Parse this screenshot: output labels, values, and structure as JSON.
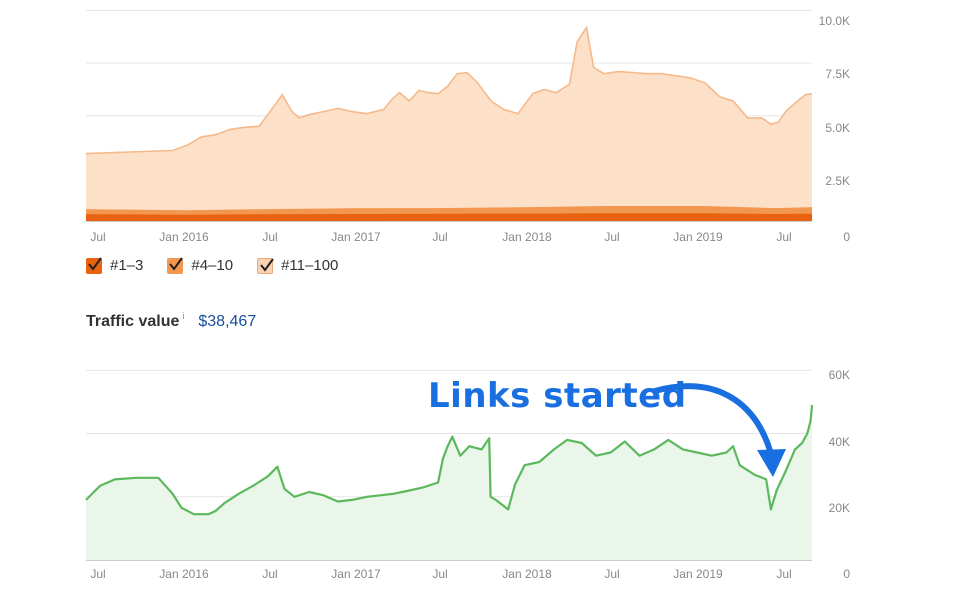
{
  "top_chart": {
    "x_ticks": [
      "Jul",
      "Jan 2016",
      "Jul",
      "Jan 2017",
      "Jul",
      "Jan 2018",
      "Jul",
      "Jan 2019",
      "Jul"
    ],
    "y_ticks": [
      "10.0K",
      "7.5K",
      "5.0K",
      "2.5K",
      "0"
    ],
    "legend": [
      {
        "label": "#1–3",
        "color": "#e8620f"
      },
      {
        "label": "#4–10",
        "color": "#f2974f"
      },
      {
        "label": "#11–100",
        "color": "#fbd3b2"
      }
    ]
  },
  "traffic_value": {
    "label": "Traffic value",
    "info": "i",
    "amount": "$38,467"
  },
  "bottom_chart": {
    "x_ticks": [
      "Jul",
      "Jan 2016",
      "Jul",
      "Jan 2017",
      "Jul",
      "Jan 2018",
      "Jul",
      "Jan 2019",
      "Jul"
    ],
    "y_ticks": [
      "60K",
      "40K",
      "20K",
      "0"
    ]
  },
  "annotation": {
    "text": "Links started",
    "color": "#1a6fe0"
  },
  "colors": {
    "orange_dark": "#e8620f",
    "orange_mid": "#f2974f",
    "orange_light": "#fbd3b2",
    "green_line": "#5cb85c",
    "green_fill": "#eaf6ea",
    "value_blue": "#1a4e9c"
  },
  "chart_data": [
    {
      "type": "area",
      "x_unit": "date",
      "x_ticks": [
        "Jul",
        "Jan 2016",
        "Jul",
        "Jan 2017",
        "Jul",
        "Jan 2018",
        "Jul",
        "Jan 2019",
        "Jul"
      ],
      "y_ticks": [
        "10.0K",
        "7.5K",
        "5.0K",
        "2.5K",
        "0"
      ],
      "ylim": [
        0,
        10500
      ],
      "xlim": [
        "2015-06-01",
        "2019-08-15"
      ],
      "series": [
        {
          "name": "#11–100",
          "color": "#fbd3b2",
          "points": [
            [
              "2015-06-01",
              3200
            ],
            [
              "2015-08-01",
              3250
            ],
            [
              "2015-10-01",
              3300
            ],
            [
              "2015-12-01",
              3350
            ],
            [
              "2016-01-01",
              3600
            ],
            [
              "2016-02-01",
              4000
            ],
            [
              "2016-03-01",
              4100
            ],
            [
              "2016-04-01",
              4350
            ],
            [
              "2016-05-01",
              4450
            ],
            [
              "2016-06-01",
              4500
            ],
            [
              "2016-07-01",
              5400
            ],
            [
              "2016-07-20",
              6000
            ],
            [
              "2016-08-10",
              5200
            ],
            [
              "2016-08-25",
              4900
            ],
            [
              "2016-09-15",
              5050
            ],
            [
              "2016-10-15",
              5200
            ],
            [
              "2016-11-15",
              5350
            ],
            [
              "2016-12-15",
              5200
            ],
            [
              "2017-01-15",
              5100
            ],
            [
              "2017-02-20",
              5300
            ],
            [
              "2017-03-10",
              5800
            ],
            [
              "2017-03-25",
              6100
            ],
            [
              "2017-04-15",
              5700
            ],
            [
              "2017-05-05",
              6200
            ],
            [
              "2017-05-25",
              6100
            ],
            [
              "2017-06-15",
              6050
            ],
            [
              "2017-07-05",
              6400
            ],
            [
              "2017-07-25",
              7000
            ],
            [
              "2017-08-15",
              7050
            ],
            [
              "2017-09-05",
              6600
            ],
            [
              "2017-10-05",
              5700
            ],
            [
              "2017-11-01",
              5300
            ],
            [
              "2017-12-01",
              5100
            ],
            [
              "2018-01-01",
              6050
            ],
            [
              "2018-01-25",
              6250
            ],
            [
              "2018-02-20",
              6100
            ],
            [
              "2018-03-20",
              6500
            ],
            [
              "2018-04-05",
              8500
            ],
            [
              "2018-04-25",
              9200
            ],
            [
              "2018-05-10",
              7300
            ],
            [
              "2018-06-01",
              7000
            ],
            [
              "2018-07-01",
              7100
            ],
            [
              "2018-08-01",
              7050
            ],
            [
              "2018-09-01",
              7000
            ],
            [
              "2018-10-01",
              7000
            ],
            [
              "2018-11-01",
              6900
            ],
            [
              "2018-12-01",
              6800
            ],
            [
              "2019-01-01",
              6550
            ],
            [
              "2019-02-01",
              5900
            ],
            [
              "2019-03-01",
              5700
            ],
            [
              "2019-04-01",
              4900
            ],
            [
              "2019-05-01",
              4900
            ],
            [
              "2019-05-20",
              4600
            ],
            [
              "2019-06-05",
              4700
            ],
            [
              "2019-06-20",
              5200
            ],
            [
              "2019-07-10",
              5600
            ],
            [
              "2019-08-01",
              6000
            ],
            [
              "2019-08-15",
              6050
            ]
          ]
        },
        {
          "name": "#4–10",
          "color": "#f2974f",
          "points": [
            [
              "2015-06-01",
              500
            ],
            [
              "2016-01-01",
              450
            ],
            [
              "2016-06-01",
              500
            ],
            [
              "2017-01-01",
              550
            ],
            [
              "2017-06-01",
              550
            ],
            [
              "2018-01-01",
              600
            ],
            [
              "2018-06-01",
              650
            ],
            [
              "2019-01-01",
              650
            ],
            [
              "2019-06-01",
              550
            ],
            [
              "2019-08-15",
              600
            ]
          ]
        },
        {
          "name": "#1–3",
          "color": "#e8620f",
          "points": [
            [
              "2015-06-01",
              250
            ],
            [
              "2016-01-01",
              230
            ],
            [
              "2016-06-01",
              250
            ],
            [
              "2017-01-01",
              260
            ],
            [
              "2017-06-01",
              270
            ],
            [
              "2018-01-01",
              280
            ],
            [
              "2018-06-01",
              300
            ],
            [
              "2019-01-01",
              300
            ],
            [
              "2019-06-01",
              260
            ],
            [
              "2019-08-15",
              280
            ]
          ]
        }
      ]
    },
    {
      "type": "area",
      "x_unit": "date",
      "x_ticks": [
        "Jul",
        "Jan 2016",
        "Jul",
        "Jan 2017",
        "Jul",
        "Jan 2018",
        "Jul",
        "Jan 2019",
        "Jul"
      ],
      "y_ticks": [
        "60K",
        "40K",
        "20K",
        "0"
      ],
      "ylim": [
        0,
        62000
      ],
      "xlim": [
        "2015-06-01",
        "2019-08-15"
      ],
      "series": [
        {
          "color": "#5cb85c",
          "points": [
            [
              "2015-06-01",
              19000
            ],
            [
              "2015-07-01",
              23500
            ],
            [
              "2015-08-01",
              25500
            ],
            [
              "2015-09-15",
              26000
            ],
            [
              "2015-11-01",
              26000
            ],
            [
              "2015-12-01",
              21000
            ],
            [
              "2015-12-20",
              16500
            ],
            [
              "2016-01-15",
              14500
            ],
            [
              "2016-02-15",
              14500
            ],
            [
              "2016-03-01",
              15500
            ],
            [
              "2016-03-20",
              18000
            ],
            [
              "2016-04-20",
              21000
            ],
            [
              "2016-05-20",
              23500
            ],
            [
              "2016-06-20",
              26500
            ],
            [
              "2016-07-10",
              29500
            ],
            [
              "2016-07-25",
              22500
            ],
            [
              "2016-08-15",
              20000
            ],
            [
              "2016-09-15",
              21500
            ],
            [
              "2016-10-15",
              20500
            ],
            [
              "2016-11-15",
              18500
            ],
            [
              "2016-12-15",
              19000
            ],
            [
              "2017-01-15",
              20000
            ],
            [
              "2017-02-15",
              20500
            ],
            [
              "2017-03-15",
              21000
            ],
            [
              "2017-04-15",
              22000
            ],
            [
              "2017-05-15",
              23000
            ],
            [
              "2017-06-15",
              24500
            ],
            [
              "2017-06-25",
              32000
            ],
            [
              "2017-07-05",
              36000
            ],
            [
              "2017-07-15",
              39000
            ],
            [
              "2017-08-01",
              33000
            ],
            [
              "2017-08-20",
              36000
            ],
            [
              "2017-09-15",
              35000
            ],
            [
              "2017-10-01",
              38500
            ],
            [
              "2017-10-04",
              20000
            ],
            [
              "2017-10-15",
              19000
            ],
            [
              "2017-11-10",
              16000
            ],
            [
              "2017-11-25",
              24000
            ],
            [
              "2017-12-15",
              30000
            ],
            [
              "2018-01-15",
              31000
            ],
            [
              "2018-02-15",
              35000
            ],
            [
              "2018-03-15",
              38000
            ],
            [
              "2018-04-15",
              37000
            ],
            [
              "2018-05-15",
              33000
            ],
            [
              "2018-06-15",
              34000
            ],
            [
              "2018-07-15",
              37500
            ],
            [
              "2018-08-15",
              33000
            ],
            [
              "2018-09-15",
              35000
            ],
            [
              "2018-10-15",
              38000
            ],
            [
              "2018-11-15",
              35000
            ],
            [
              "2018-12-15",
              34000
            ],
            [
              "2019-01-15",
              33000
            ],
            [
              "2019-02-15",
              34000
            ],
            [
              "2019-03-01",
              36000
            ],
            [
              "2019-03-15",
              30000
            ],
            [
              "2019-04-15",
              27000
            ],
            [
              "2019-05-10",
              25500
            ],
            [
              "2019-05-20",
              16000
            ],
            [
              "2019-06-01",
              22000
            ],
            [
              "2019-06-20",
              28000
            ],
            [
              "2019-07-10",
              35000
            ],
            [
              "2019-07-25",
              37000
            ],
            [
              "2019-08-05",
              40000
            ],
            [
              "2019-08-12",
              44000
            ],
            [
              "2019-08-15",
              49000
            ]
          ]
        }
      ]
    }
  ]
}
